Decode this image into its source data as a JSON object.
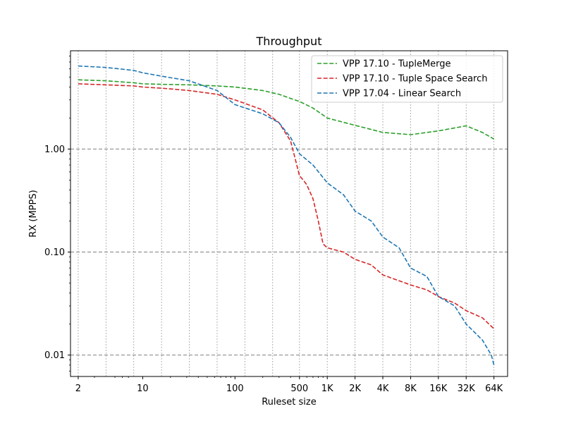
{
  "chart_data": {
    "type": "line",
    "title": "Throughput",
    "xlabel": "Ruleset size",
    "ylabel": "RX (MPPS)",
    "x_scale": "log2",
    "y_scale": "log10",
    "xlim": [
      1.65,
      90000
    ],
    "ylim": [
      0.0062,
      9.0
    ],
    "x_ticks": [
      2,
      10,
      100,
      500,
      1000,
      2000,
      4000,
      8000,
      16000,
      32000,
      64000
    ],
    "x_tick_labels": [
      "2",
      "10",
      "100",
      "500",
      "1K",
      "2K",
      "4K",
      "8K",
      "16K",
      "32K",
      "64K"
    ],
    "y_ticks": [
      0.01,
      0.1,
      1.0
    ],
    "y_tick_labels": [
      "0.01",
      "0.10",
      "1.00"
    ],
    "vertical_grid": [
      2,
      4,
      8,
      16,
      32,
      64,
      128,
      256,
      500,
      1000,
      2000,
      4000,
      8000,
      16000,
      32000,
      64000
    ],
    "grid": true,
    "legend_position": "top-right",
    "series": [
      {
        "name": "VPP 17.10 - TupleMerge",
        "color": "#2ca02c",
        "x": [
          2,
          4,
          8,
          10,
          16,
          32,
          64,
          100,
          200,
          300,
          400,
          500,
          700,
          1000,
          2000,
          4000,
          8000,
          16000,
          32000,
          48000,
          64000
        ],
        "y": [
          4.7,
          4.6,
          4.4,
          4.3,
          4.25,
          4.2,
          4.1,
          4.0,
          3.7,
          3.4,
          3.1,
          2.9,
          2.5,
          2.0,
          1.7,
          1.45,
          1.38,
          1.5,
          1.68,
          1.45,
          1.25
        ]
      },
      {
        "name": "VPP 17.10 - Tuple Space Search",
        "color": "#d62728",
        "x": [
          2,
          4,
          8,
          10,
          16,
          32,
          64,
          100,
          200,
          300,
          400,
          450,
          500,
          550,
          600,
          700,
          800,
          900,
          1000,
          1500,
          2000,
          3000,
          4000,
          8000,
          12000,
          16000,
          24000,
          32000,
          48000,
          64000
        ],
        "y": [
          4.3,
          4.2,
          4.1,
          4.0,
          3.9,
          3.7,
          3.4,
          3.0,
          2.4,
          1.8,
          1.2,
          0.8,
          0.55,
          0.5,
          0.45,
          0.33,
          0.2,
          0.12,
          0.11,
          0.1,
          0.085,
          0.075,
          0.06,
          0.048,
          0.043,
          0.037,
          0.032,
          0.027,
          0.023,
          0.018
        ]
      },
      {
        "name": "VPP 17.04 - Linear Search",
        "color": "#1f77b4",
        "x": [
          2,
          4,
          8,
          10,
          16,
          32,
          64,
          100,
          200,
          300,
          400,
          500,
          700,
          1000,
          1500,
          2000,
          3000,
          4000,
          6000,
          8000,
          12000,
          16000,
          24000,
          32000,
          48000,
          60000,
          64000
        ],
        "y": [
          6.4,
          6.2,
          5.8,
          5.5,
          5.1,
          4.6,
          3.7,
          2.7,
          2.2,
          1.8,
          1.3,
          0.9,
          0.7,
          0.47,
          0.36,
          0.25,
          0.2,
          0.14,
          0.11,
          0.07,
          0.058,
          0.037,
          0.03,
          0.02,
          0.014,
          0.01,
          0.008
        ]
      }
    ]
  }
}
